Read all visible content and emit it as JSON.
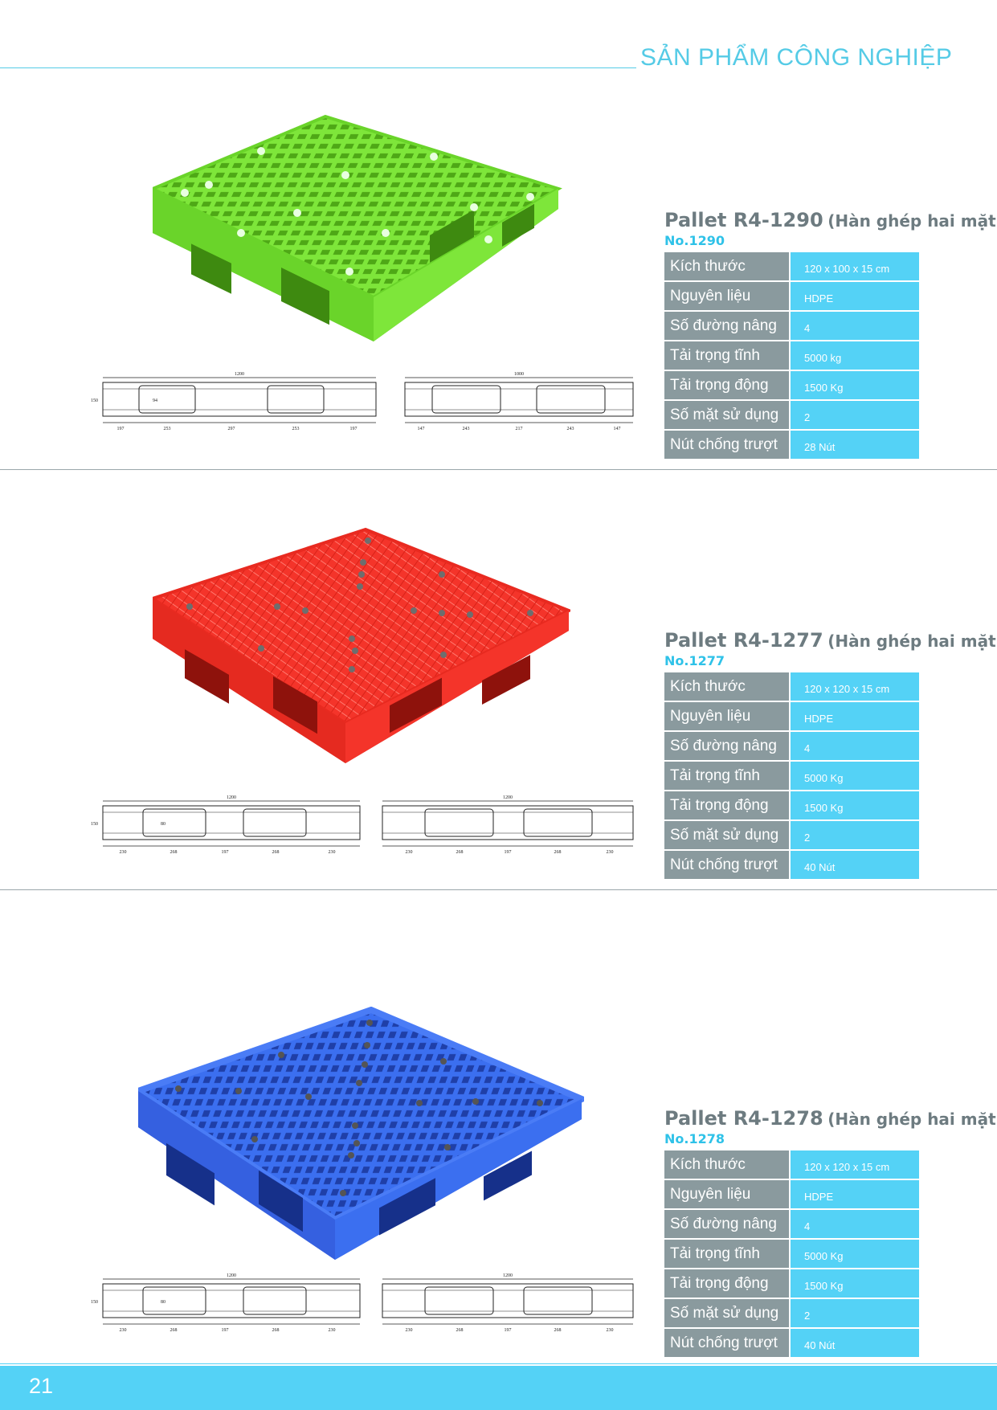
{
  "header": {
    "title": "SẢN PHẨM CÔNG NGHIỆP"
  },
  "products": [
    {
      "name": "Pallet R4-1290",
      "subtitle": "(Hàn ghép hai mặt)",
      "no": "No.1290",
      "color": "#7ee63a",
      "dark": "#56b81e",
      "specs": [
        {
          "label": "Kích thước",
          "value": "120 x 100 x 15 cm"
        },
        {
          "label": "Nguyên liệu",
          "value": "HDPE"
        },
        {
          "label": "Số đường nâng",
          "value": "4"
        },
        {
          "label": "Tải trọng tĩnh",
          "value": "5000 kg"
        },
        {
          "label": "Tải trọng động",
          "value": "1500 Kg"
        },
        {
          "label": "Số mặt sử dụng",
          "value": "2"
        },
        {
          "label": "Nút chống trượt",
          "value": "28 Nút"
        }
      ],
      "drawing": {
        "left_width": "1200",
        "right_width": "1000",
        "height": "150",
        "opening": "94",
        "left_dims": [
          "197",
          "253",
          "297",
          "253",
          "197"
        ],
        "right_dims": [
          "147",
          "243",
          "217",
          "243",
          "147"
        ]
      }
    },
    {
      "name": "Pallet R4-1277",
      "subtitle": "(Hàn ghép hai mặt)",
      "no": "No.1277",
      "color": "#f4342a",
      "dark": "#c21a14",
      "specs": [
        {
          "label": "Kích thước",
          "value": "120 x 120 x 15 cm"
        },
        {
          "label": "Nguyên liệu",
          "value": "HDPE"
        },
        {
          "label": "Số đường nâng",
          "value": "4"
        },
        {
          "label": "Tải trọng tĩnh",
          "value": "5000 Kg"
        },
        {
          "label": "Tải trọng động",
          "value": "1500 Kg"
        },
        {
          "label": "Số mặt sử dụng",
          "value": "2"
        },
        {
          "label": "Nút chống trượt",
          "value": "40 Nút"
        }
      ],
      "drawing": {
        "left_width": "1200",
        "right_width": "1200",
        "height": "150",
        "opening": "80",
        "left_dims": [
          "230",
          "268",
          "197",
          "268",
          "230"
        ],
        "right_dims": [
          "230",
          "268",
          "197",
          "268",
          "230"
        ]
      }
    },
    {
      "name": "Pallet R4-1278",
      "subtitle": "(Hàn ghép hai mặt)",
      "no": "No.1278",
      "color": "#3b6ff0",
      "dark": "#2448c4",
      "specs": [
        {
          "label": "Kích thước",
          "value": "120 x 120 x 15 cm"
        },
        {
          "label": "Nguyên liệu",
          "value": "HDPE"
        },
        {
          "label": "Số đường nâng",
          "value": "4"
        },
        {
          "label": "Tải trọng tĩnh",
          "value": "5000 Kg"
        },
        {
          "label": "Tải trọng động",
          "value": "1500 Kg"
        },
        {
          "label": "Số mặt sử dụng",
          "value": "2"
        },
        {
          "label": "Nút chống trượt",
          "value": "40 Nút"
        }
      ],
      "drawing": {
        "left_width": "1200",
        "right_width": "1200",
        "height": "150",
        "opening": "80",
        "left_dims": [
          "230",
          "268",
          "197",
          "268",
          "230"
        ],
        "right_dims": [
          "230",
          "268",
          "197",
          "268",
          "230"
        ]
      }
    }
  ],
  "footer": {
    "page_number": "21"
  }
}
